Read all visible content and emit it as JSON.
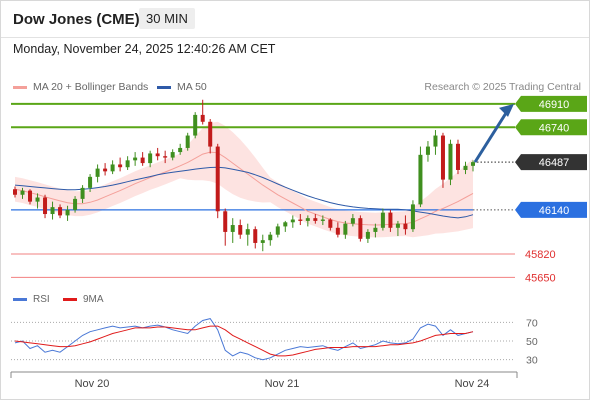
{
  "header": {
    "title": "Dow Jones (CME)",
    "timeframe": "30 MIN",
    "timestamp": "Monday, November 24, 2025 12:40:26 AM CET"
  },
  "legend": {
    "ma20_label": "MA 20 + Bollinger Bands",
    "ma20_color": "#f4a09a",
    "ma50_label": "MA 50",
    "ma50_color": "#2e5aa8",
    "credit": "Research © 2025 Trading Central"
  },
  "rsi_legend": {
    "rsi_label": "RSI",
    "rsi_color": "#4a78d6",
    "ma9_label": "9MA",
    "ma9_color": "#e01b1b"
  },
  "colors": {
    "bull": "#3f8f1f",
    "bear": "#c21b1b",
    "resistance": "#5aa617",
    "current": "#333333",
    "pivot": "#2b70e0",
    "support": "#f28080",
    "band_fill": "#fde0de",
    "arrow": "#2c5f9e"
  },
  "chart_data": [
    {
      "type": "candlestick",
      "ylim": [
        45580,
        46960
      ],
      "x_ticks": [
        {
          "index": 10,
          "label": "Nov 20"
        },
        {
          "index": 34,
          "label": "Nov 21"
        },
        {
          "index": 58,
          "label": "Nov 24"
        }
      ],
      "levels": [
        {
          "value": 46910,
          "label": "46910",
          "kind": "resistance"
        },
        {
          "value": 46740,
          "label": "46740",
          "kind": "resistance"
        },
        {
          "value": 46487,
          "label": "46487",
          "kind": "current"
        },
        {
          "value": 46140,
          "label": "46140",
          "kind": "pivot"
        },
        {
          "value": 45820,
          "label": "45820",
          "kind": "support"
        },
        {
          "value": 45650,
          "label": "45650",
          "kind": "support"
        }
      ],
      "ohlc": [
        [
          46290,
          46310,
          46230,
          46250
        ],
        [
          46250,
          46300,
          46220,
          46280
        ],
        [
          46280,
          46290,
          46180,
          46200
        ],
        [
          46200,
          46260,
          46150,
          46230
        ],
        [
          46230,
          46250,
          46080,
          46110
        ],
        [
          46110,
          46200,
          46070,
          46160
        ],
        [
          46160,
          46180,
          46080,
          46100
        ],
        [
          46100,
          46170,
          46060,
          46140
        ],
        [
          46140,
          46240,
          46120,
          46220
        ],
        [
          46220,
          46320,
          46190,
          46300
        ],
        [
          46300,
          46400,
          46270,
          46380
        ],
        [
          46380,
          46470,
          46340,
          46440
        ],
        [
          46440,
          46480,
          46390,
          46420
        ],
        [
          46420,
          46500,
          46400,
          46470
        ],
        [
          46470,
          46520,
          46420,
          46450
        ],
        [
          46450,
          46530,
          46430,
          46500
        ],
        [
          46500,
          46560,
          46460,
          46520
        ],
        [
          46520,
          46560,
          46460,
          46480
        ],
        [
          46480,
          46570,
          46450,
          46550
        ],
        [
          46550,
          46590,
          46500,
          46530
        ],
        [
          46530,
          46570,
          46480,
          46520
        ],
        [
          46520,
          46580,
          46500,
          46560
        ],
        [
          46560,
          46620,
          46540,
          46590
        ],
        [
          46590,
          46700,
          46570,
          46680
        ],
        [
          46680,
          46850,
          46660,
          46830
        ],
        [
          46830,
          46940,
          46760,
          46780
        ],
        [
          46780,
          46800,
          46550,
          46600
        ],
        [
          46600,
          46620,
          46080,
          46130
        ],
        [
          46130,
          46150,
          45880,
          45980
        ],
        [
          45980,
          46080,
          45900,
          46030
        ],
        [
          46030,
          46070,
          45930,
          45960
        ],
        [
          45960,
          46040,
          45880,
          46000
        ],
        [
          46000,
          46020,
          45860,
          45900
        ],
        [
          45900,
          45960,
          45840,
          45920
        ],
        [
          45920,
          45980,
          45880,
          45960
        ],
        [
          45960,
          46040,
          45940,
          46020
        ],
        [
          46020,
          46060,
          45980,
          46050
        ],
        [
          46050,
          46100,
          46010,
          46070
        ],
        [
          46070,
          46110,
          46030,
          46060
        ],
        [
          46060,
          46100,
          46020,
          46080
        ],
        [
          46080,
          46110,
          46040,
          46060
        ],
        [
          46060,
          46100,
          46030,
          46070
        ],
        [
          46070,
          46080,
          45990,
          46010
        ],
        [
          46010,
          46050,
          45940,
          45960
        ],
        [
          45960,
          46060,
          45930,
          46040
        ],
        [
          46040,
          46110,
          46020,
          46080
        ],
        [
          46080,
          46100,
          45910,
          45930
        ],
        [
          45930,
          46000,
          45900,
          45980
        ],
        [
          45980,
          46040,
          45940,
          46010
        ],
        [
          46010,
          46150,
          45990,
          46120
        ],
        [
          46120,
          46140,
          45980,
          46010
        ],
        [
          46010,
          46060,
          45950,
          46040
        ],
        [
          46040,
          46100,
          45960,
          46000
        ],
        [
          46000,
          46210,
          45980,
          46180
        ],
        [
          46180,
          46600,
          46160,
          46540
        ],
        [
          46540,
          46640,
          46490,
          46600
        ],
        [
          46600,
          46720,
          46540,
          46680
        ],
        [
          46680,
          46700,
          46300,
          46360
        ],
        [
          46360,
          46650,
          46320,
          46620
        ],
        [
          46620,
          46650,
          46400,
          46430
        ],
        [
          46430,
          46490,
          46400,
          46460
        ],
        [
          46460,
          46500,
          46420,
          46487
        ]
      ],
      "ma20": [
        46290,
        46280,
        46265,
        46252,
        46235,
        46220,
        46205,
        46192,
        46185,
        46185,
        46195,
        46212,
        46235,
        46258,
        46280,
        46305,
        46330,
        46352,
        46375,
        46395,
        46415,
        46437,
        46460,
        46485,
        46515,
        46545,
        46560,
        46555,
        46520,
        46480,
        46440,
        46400,
        46360,
        46320,
        46285,
        46250,
        46220,
        46190,
        46160,
        46130,
        46110,
        46090,
        46070,
        46055,
        46045,
        46040,
        46035,
        46032,
        46030,
        46032,
        46035,
        46038,
        46040,
        46050,
        46075,
        46100,
        46130,
        46150,
        46175,
        46200,
        46230,
        46260
      ],
      "ma50": [
        46320,
        46315,
        46310,
        46305,
        46300,
        46295,
        46290,
        46287,
        46287,
        46290,
        46295,
        46302,
        46310,
        46320,
        46332,
        46345,
        46358,
        46370,
        46382,
        46395,
        46405,
        46413,
        46420,
        46428,
        46436,
        46443,
        46448,
        46450,
        46445,
        46435,
        46425,
        46412,
        46395,
        46375,
        46352,
        46328,
        46305,
        46283,
        46262,
        46242,
        46224,
        46208,
        46193,
        46180,
        46170,
        46162,
        46156,
        46151,
        46148,
        46146,
        46145,
        46144,
        46140,
        46133,
        46124,
        46115,
        46106,
        46096,
        46088,
        46082,
        46090,
        46105
      ]
    },
    {
      "type": "line",
      "name": "RSI",
      "ylim": [
        20,
        80
      ],
      "y_ticks": [
        30,
        50,
        70
      ],
      "rsi": [
        48,
        50,
        42,
        45,
        38,
        40,
        38,
        44,
        50,
        56,
        60,
        62,
        64,
        66,
        64,
        65,
        66,
        64,
        66,
        67,
        65,
        62,
        60,
        58,
        66,
        72,
        74,
        62,
        40,
        34,
        38,
        36,
        32,
        30,
        32,
        36,
        40,
        42,
        44,
        43,
        44,
        45,
        42,
        40,
        44,
        48,
        42,
        44,
        46,
        50,
        48,
        47,
        48,
        52,
        64,
        68,
        66,
        56,
        62,
        56,
        58,
        60
      ],
      "ma9": [
        50,
        49,
        48,
        47,
        46,
        45,
        44,
        44,
        45,
        47,
        49,
        52,
        55,
        58,
        60,
        62,
        64,
        64,
        64,
        65,
        65,
        64,
        63,
        62,
        62,
        64,
        66,
        66,
        62,
        56,
        52,
        48,
        44,
        40,
        36,
        34,
        34,
        35,
        37,
        39,
        41,
        42,
        43,
        43,
        43,
        44,
        44,
        44,
        44,
        45,
        46,
        46,
        47,
        48,
        50,
        53,
        56,
        57,
        58,
        58,
        58,
        60
      ]
    }
  ]
}
